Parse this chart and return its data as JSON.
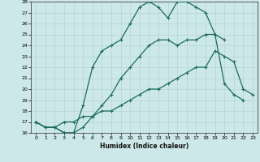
{
  "title": "",
  "xlabel": "Humidex (Indice chaleur)",
  "ylabel": "",
  "background_color": "#cde8e8",
  "line_color": "#1a6b60",
  "grid_color": "#b8d8d8",
  "xlim": [
    -0.5,
    23.5
  ],
  "ylim": [
    16,
    28
  ],
  "xticks": [
    0,
    1,
    2,
    3,
    4,
    5,
    6,
    7,
    8,
    9,
    10,
    11,
    12,
    13,
    14,
    15,
    16,
    17,
    18,
    19,
    20,
    21,
    22,
    23
  ],
  "yticks": [
    16,
    17,
    18,
    19,
    20,
    21,
    22,
    23,
    24,
    25,
    26,
    27,
    28
  ],
  "series": [
    {
      "x": [
        0,
        1,
        2,
        3,
        4,
        5,
        6,
        7,
        8,
        9,
        10,
        11,
        12,
        13,
        14,
        15,
        16,
        17,
        18,
        19,
        20,
        21,
        22
      ],
      "y": [
        17,
        16.5,
        16.5,
        16,
        16,
        16.5,
        17.5,
        18.5,
        19.5,
        21,
        22,
        23,
        24,
        24.5,
        24.5,
        24,
        24.5,
        24.5,
        25,
        25,
        20.5,
        19.5,
        19
      ]
    },
    {
      "x": [
        0,
        1,
        2,
        3,
        4,
        5,
        6,
        7,
        8,
        9,
        10,
        11,
        12,
        13,
        14,
        15,
        16,
        17,
        18,
        19,
        20
      ],
      "y": [
        17,
        16.5,
        16.5,
        16,
        16,
        18.5,
        22,
        23.5,
        24,
        24.5,
        26,
        27.5,
        28,
        27.5,
        26.5,
        28,
        28,
        27.5,
        27,
        25,
        24.5
      ]
    },
    {
      "x": [
        0,
        1,
        2,
        3,
        4,
        5,
        6,
        7,
        8,
        9,
        10,
        11,
        12,
        13,
        14,
        15,
        16,
        17,
        18,
        19,
        20,
        21,
        22,
        23
      ],
      "y": [
        17,
        16.5,
        16.5,
        17,
        17,
        17.5,
        17.5,
        18,
        18,
        18.5,
        19,
        19.5,
        20,
        20,
        20.5,
        21,
        21.5,
        22,
        22,
        23.5,
        23,
        22.5,
        20,
        19.5
      ]
    }
  ]
}
